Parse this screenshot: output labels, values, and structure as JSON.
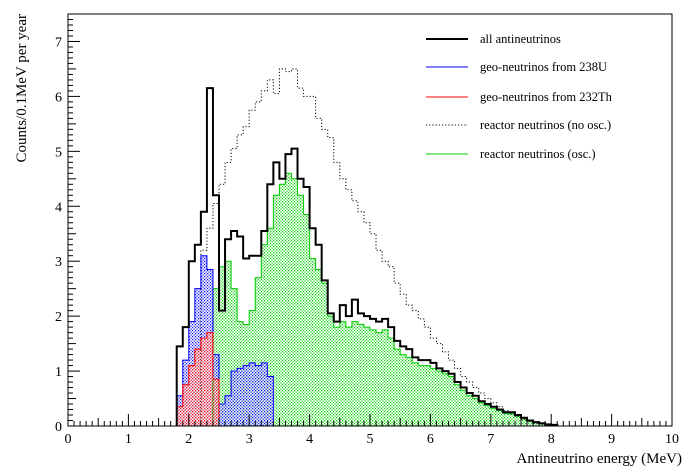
{
  "chart_data": {
    "type": "histogram",
    "xlabel": "Antineutrino energy (MeV)",
    "ylabel": "Counts/0.1MeV per year",
    "xlim": [
      0,
      10
    ],
    "ylim": [
      0,
      7.5
    ],
    "x_ticks": [
      "0",
      "1",
      "2",
      "3",
      "4",
      "5",
      "6",
      "7",
      "8",
      "9",
      "10"
    ],
    "y_ticks": [
      "0",
      "1",
      "2",
      "3",
      "4",
      "5",
      "6",
      "7"
    ],
    "bin_width": 0.1,
    "bin_edges_start": 1.8,
    "legend_position": "top-right",
    "series": [
      {
        "name": "all antineutrinos",
        "color": "#000000",
        "style": "solid-thick",
        "values": [
          1.45,
          1.8,
          3.0,
          3.3,
          3.9,
          6.15,
          4.2,
          2.1,
          3.4,
          3.55,
          3.45,
          3.05,
          3.1,
          3.1,
          3.55,
          4.4,
          4.8,
          4.5,
          4.95,
          5.05,
          4.5,
          4.35,
          3.6,
          3.3,
          2.65,
          2.05,
          1.9,
          2.2,
          2.0,
          2.3,
          2.05,
          2.0,
          1.95,
          1.9,
          1.95,
          1.8,
          1.55,
          1.45,
          1.4,
          1.25,
          1.2,
          1.2,
          1.15,
          1.05,
          1.0,
          0.95,
          0.8,
          0.7,
          0.6,
          0.55,
          0.45,
          0.4,
          0.35,
          0.3,
          0.25,
          0.25,
          0.2,
          0.15,
          0.1,
          0.07,
          0.05,
          0.03,
          0.02
        ]
      },
      {
        "name": "geo-neutrinos from 238U",
        "color": "#0000ff",
        "style": "hatched",
        "values": [
          0.55,
          1.2,
          1.9,
          2.5,
          3.1,
          2.85,
          1.3,
          0.4,
          0.55,
          1.0,
          1.05,
          1.1,
          1.15,
          1.1,
          1.15,
          0.9,
          0.0
        ]
      },
      {
        "name": "geo-neutrinos from 232Th",
        "color": "#ff0000",
        "style": "hatched",
        "values": [
          0.35,
          0.75,
          1.1,
          1.4,
          1.6,
          1.7,
          0.85,
          0.0
        ]
      },
      {
        "name": "reactor neutrinos (no osc.)",
        "color": "#000000",
        "style": "dotted",
        "values": [
          0.0,
          0.0,
          0.0,
          0.0,
          3.2,
          3.6,
          4.05,
          4.4,
          4.8,
          5.05,
          5.3,
          5.45,
          5.75,
          5.9,
          6.1,
          6.3,
          6.05,
          6.5,
          6.45,
          6.5,
          6.15,
          6.0,
          6.0,
          5.6,
          5.4,
          5.25,
          4.8,
          4.5,
          4.3,
          4.1,
          3.9,
          3.7,
          3.5,
          3.2,
          3.0,
          2.9,
          2.6,
          2.4,
          2.2,
          2.1,
          1.95,
          1.8,
          1.6,
          1.5,
          1.35,
          1.2,
          1.05,
          0.9,
          0.8,
          0.7,
          0.6,
          0.5,
          0.42,
          0.35,
          0.28,
          0.22,
          0.17,
          0.12,
          0.08,
          0.05,
          0.03,
          0.02,
          0.01
        ]
      },
      {
        "name": "reactor neutrinos (osc.)",
        "color": "#00cc00",
        "style": "hatched",
        "values": [
          0.0,
          0.0,
          0.0,
          0.0,
          0.0,
          0.0,
          2.5,
          2.9,
          3.0,
          2.5,
          1.9,
          1.85,
          2.1,
          2.7,
          3.3,
          3.6,
          4.2,
          4.4,
          4.6,
          4.5,
          4.2,
          3.85,
          3.05,
          2.85,
          2.6,
          2.0,
          1.8,
          1.9,
          1.8,
          1.9,
          1.85,
          1.8,
          1.75,
          1.7,
          1.75,
          1.6,
          1.4,
          1.3,
          1.25,
          1.15,
          1.1,
          1.1,
          1.05,
          1.0,
          0.95,
          0.9,
          0.75,
          0.65,
          0.55,
          0.5,
          0.42,
          0.37,
          0.32,
          0.28,
          0.23,
          0.22,
          0.18,
          0.13,
          0.09,
          0.06,
          0.04,
          0.02,
          0.01
        ]
      }
    ]
  }
}
